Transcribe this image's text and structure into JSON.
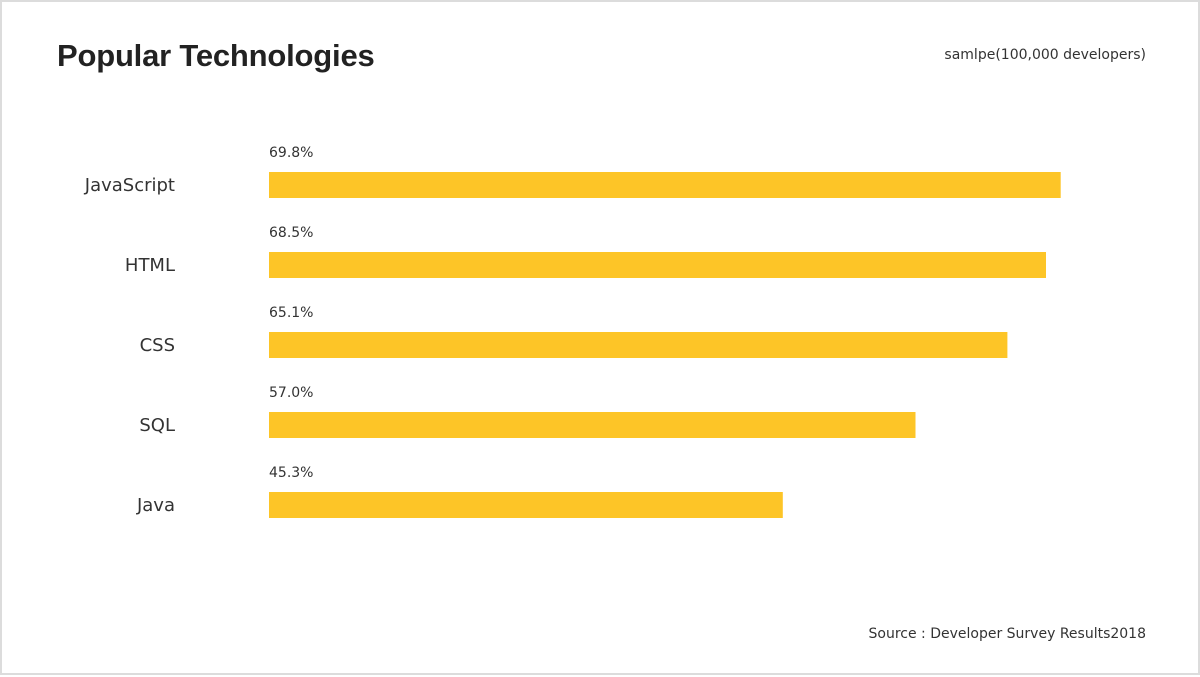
{
  "page": {
    "title": "Popular Technologies",
    "sample_note": "samlpe(100,000 developers)",
    "source": "Source : Developer Survey Results2018"
  },
  "colors": {
    "bar": "#fdc527"
  },
  "chart_data": {
    "type": "bar",
    "orientation": "horizontal",
    "title": "Popular Technologies",
    "categories": [
      "JavaScript",
      "HTML",
      "CSS",
      "SQL",
      "Java"
    ],
    "values": [
      69.8,
      68.5,
      65.1,
      57.0,
      45.3
    ],
    "value_labels": [
      "69.8%",
      "68.5%",
      "65.1%",
      "57.0%",
      "45.3%"
    ],
    "unit": "%",
    "xlim": [
      0,
      70
    ],
    "xlabel": "",
    "ylabel": "",
    "grid": false,
    "legend": "none"
  }
}
